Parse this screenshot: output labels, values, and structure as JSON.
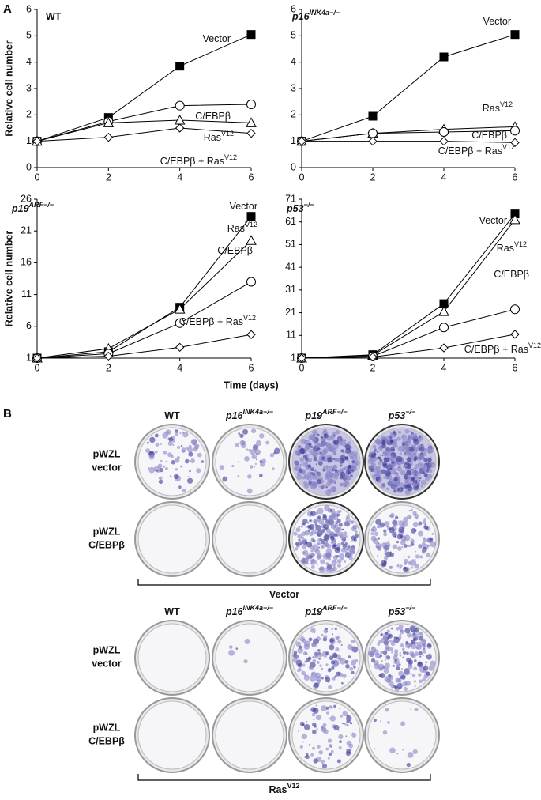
{
  "panel_a": {
    "label": "A",
    "x_label": "Time (days)"
  },
  "chart_data": [
    {
      "type": "line",
      "title": "WT",
      "y_label": "Relative cell number",
      "x": [
        0,
        2,
        4,
        6
      ],
      "xlim": [
        0,
        6
      ],
      "xticks": [
        0,
        2,
        4,
        6
      ],
      "ylim": [
        0,
        6
      ],
      "yticks": [
        0,
        1,
        2,
        3,
        4,
        5,
        6
      ],
      "series": [
        {
          "name": "Vector",
          "marker": "square",
          "color": "#000000",
          "values": [
            1,
            1.9,
            3.85,
            5.05
          ]
        },
        {
          "name": "C/EBPβ",
          "marker": "circle",
          "color": "#000000",
          "values": [
            1,
            1.75,
            2.35,
            2.4
          ]
        },
        {
          "name": "Ras",
          "name_sup": "V12",
          "marker": "triangle",
          "color": "#000000",
          "values": [
            1,
            1.7,
            1.8,
            1.7
          ]
        },
        {
          "name": "C/EBPβ + Ras",
          "name_sup": "V12",
          "marker": "diamond",
          "color": "#000000",
          "values": [
            1,
            1.15,
            1.5,
            1.3
          ]
        }
      ]
    },
    {
      "type": "line",
      "title": "p16",
      "title_sup": "INK4a−/−",
      "x": [
        0,
        2,
        4,
        6
      ],
      "xlim": [
        0,
        6
      ],
      "xticks": [
        0,
        2,
        4,
        6
      ],
      "ylim": [
        0,
        6
      ],
      "yticks": [
        0,
        1,
        2,
        3,
        4,
        5,
        6
      ],
      "series": [
        {
          "name": "Vector",
          "marker": "square",
          "color": "#000000",
          "values": [
            1,
            1.95,
            4.2,
            5.05
          ]
        },
        {
          "name": "Ras",
          "name_sup": "V12",
          "marker": "triangle",
          "color": "#000000",
          "values": [
            1,
            1.3,
            1.45,
            1.55
          ]
        },
        {
          "name": "C/EBPβ",
          "marker": "circle",
          "color": "#000000",
          "values": [
            1,
            1.3,
            1.35,
            1.4
          ]
        },
        {
          "name": "C/EBPβ + Ras",
          "name_sup": "V12",
          "marker": "diamond",
          "color": "#000000",
          "values": [
            1,
            1.0,
            1.0,
            0.95
          ]
        }
      ]
    },
    {
      "type": "line",
      "title": "p19",
      "title_sup": "ARF−/−",
      "y_label": "Relative cell number",
      "x": [
        0,
        2,
        4,
        6
      ],
      "xlim": [
        0,
        6
      ],
      "xticks": [
        0,
        2,
        4,
        6
      ],
      "ylim": [
        1,
        26
      ],
      "yticks": [
        1,
        6,
        11,
        16,
        21,
        26
      ],
      "series": [
        {
          "name": "Vector",
          "marker": "square",
          "color": "#000000",
          "values": [
            1,
            2,
            9,
            23.3
          ]
        },
        {
          "name": "Ras",
          "name_sup": "V12",
          "marker": "triangle",
          "color": "#000000",
          "values": [
            1,
            2.5,
            8.7,
            19.5
          ]
        },
        {
          "name": "C/EBPβ",
          "marker": "circle",
          "color": "#000000",
          "values": [
            1,
            1.7,
            6.5,
            13
          ]
        },
        {
          "name": "C/EBPβ + Ras",
          "name_sup": "V12",
          "marker": "diamond",
          "color": "#000000",
          "values": [
            1,
            1.3,
            2.7,
            4.7
          ]
        }
      ]
    },
    {
      "type": "line",
      "title": "p53",
      "title_sup": "−/−",
      "x": [
        0,
        2,
        4,
        6
      ],
      "xlim": [
        0,
        6
      ],
      "xticks": [
        0,
        2,
        4,
        6
      ],
      "ylim": [
        1,
        71
      ],
      "yticks": [
        1,
        11,
        21,
        31,
        41,
        51,
        61,
        71
      ],
      "series": [
        {
          "name": "Vector",
          "marker": "square",
          "color": "#000000",
          "values": [
            1,
            2.5,
            25,
            64.5
          ]
        },
        {
          "name": "Ras",
          "name_sup": "V12",
          "marker": "triangle",
          "color": "#000000",
          "values": [
            1,
            2.2,
            21.5,
            62
          ]
        },
        {
          "name": "C/EBPβ",
          "marker": "circle",
          "color": "#000000",
          "values": [
            1,
            1.8,
            14.5,
            22.5
          ]
        },
        {
          "name": "C/EBPβ + Ras",
          "name_sup": "V12",
          "marker": "diamond",
          "color": "#000000",
          "values": [
            1,
            1.5,
            5.5,
            11.5
          ]
        }
      ]
    }
  ],
  "panel_b": {
    "label": "B",
    "groups": [
      {
        "columns": [
          {
            "name": "WT"
          },
          {
            "name": "p16",
            "sup": "INK4a−/−"
          },
          {
            "name": "p19",
            "sup": "ARF−/−"
          },
          {
            "name": "p53",
            "sup": "−/−"
          }
        ],
        "rows": [
          [
            "pWZL",
            "vector"
          ],
          [
            "pWZL",
            "C/EBPβ"
          ]
        ],
        "bracket": {
          "name": "Vector"
        }
      },
      {
        "columns": [
          {
            "name": "WT"
          },
          {
            "name": "p16",
            "sup": "INK4a−/−"
          },
          {
            "name": "p19",
            "sup": "ARF−/−"
          },
          {
            "name": "p53",
            "sup": "−/−"
          }
        ],
        "rows": [
          [
            "pWZL",
            "vector"
          ],
          [
            "pWZL",
            "C/EBPβ"
          ]
        ],
        "bracket": {
          "name": "Ras",
          "sup": "V12"
        }
      }
    ]
  }
}
